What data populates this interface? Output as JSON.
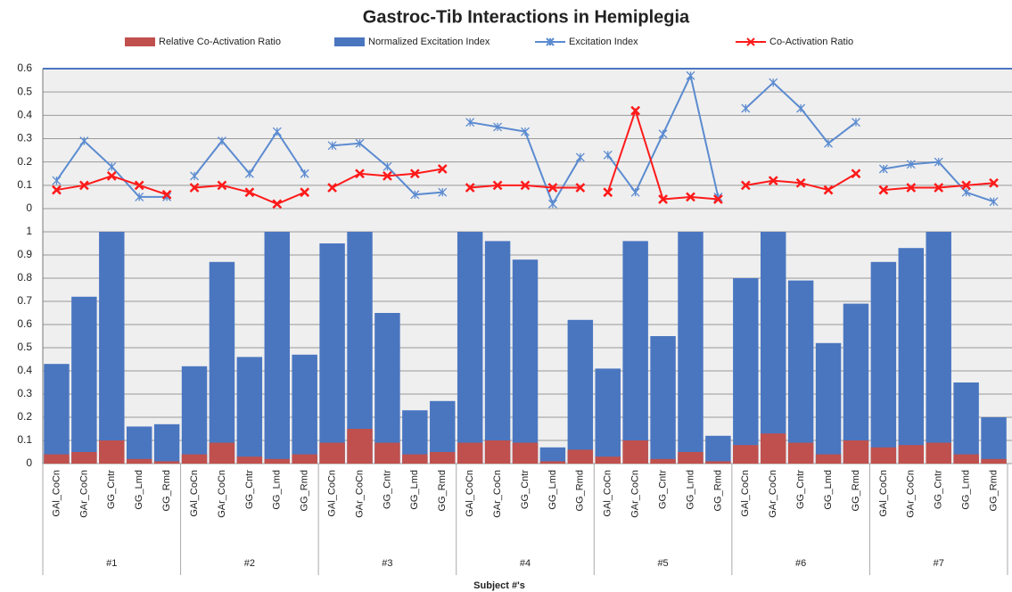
{
  "chart_data": [
    {
      "type": "line",
      "title": "Gastroc-Tib Interactions in Hemiplegia",
      "ylim": [
        0,
        0.6
      ],
      "yticks": [
        0,
        0.1,
        0.2,
        0.3,
        0.4,
        0.5,
        0.6
      ],
      "grid": true,
      "series": [
        {
          "name": "Excitation Index",
          "color": "#5b8bd0",
          "marker": "star",
          "values": [
            0.12,
            0.29,
            0.18,
            0.05,
            0.05,
            0.14,
            0.29,
            0.15,
            0.33,
            0.15,
            0.27,
            0.28,
            0.18,
            0.06,
            0.07,
            0.37,
            0.35,
            0.33,
            0.02,
            0.22,
            0.23,
            0.07,
            0.32,
            0.57,
            0.05,
            0.43,
            0.54,
            0.43,
            0.28,
            0.37,
            0.17,
            0.19,
            0.2,
            0.07,
            0.03
          ]
        },
        {
          "name": "Co-Activation Ratio",
          "color": "#ff1a1a",
          "marker": "x",
          "values": [
            0.08,
            0.1,
            0.14,
            0.1,
            0.06,
            0.09,
            0.1,
            0.07,
            0.02,
            0.07,
            0.09,
            0.15,
            0.14,
            0.15,
            0.17,
            0.09,
            0.1,
            0.1,
            0.09,
            0.09,
            0.07,
            0.42,
            0.04,
            0.05,
            0.04,
            0.1,
            0.12,
            0.11,
            0.08,
            0.15,
            0.08,
            0.09,
            0.09,
            0.1,
            0.11
          ]
        }
      ]
    },
    {
      "type": "bar",
      "xlabel": "Subject #'s",
      "categories": [
        "GAl_CoCn",
        "GAr_CoCn",
        "GG_Cntr",
        "GG_Lmd",
        "GG_Rmd",
        "GAl_CoCn",
        "GAr_CoCn",
        "GG_Cntr",
        "GG_Lmd",
        "GG_Rmd",
        "GAl_CoCn",
        "GAr_CoCn",
        "GG_Cntr",
        "GG_Lmd",
        "GG_Rmd",
        "GAl_CoCn",
        "GAr_CoCn",
        "GG_Cntr",
        "GG_Lmd",
        "GG_Rmd",
        "GAl_CoCn",
        "GAr_CoCn",
        "GG_Cntr",
        "GG_Lmd",
        "GG_Rmd",
        "GAl_CoCn",
        "GAr_CoCn",
        "GG_Cntr",
        "GG_Lmd",
        "GG_Rmd",
        "GAl_CoCn",
        "GAr_CoCn",
        "GG_Cntr",
        "GG_Lmd",
        "GG_Rmd"
      ],
      "groups": [
        "#1",
        "#2",
        "#3",
        "#4",
        "#5",
        "#6",
        "#7"
      ],
      "ylim": [
        0,
        1
      ],
      "yticks": [
        0,
        0.1,
        0.2,
        0.3,
        0.4,
        0.5,
        0.6,
        0.7,
        0.8,
        0.9,
        1
      ],
      "grid": true,
      "series": [
        {
          "name": "Relative Co-Activation Ratio",
          "color": "#c0504d",
          "values": [
            0.04,
            0.05,
            0.1,
            0.02,
            0.01,
            0.04,
            0.09,
            0.03,
            0.02,
            0.04,
            0.09,
            0.15,
            0.09,
            0.04,
            0.05,
            0.09,
            0.1,
            0.09,
            0.01,
            0.06,
            0.03,
            0.1,
            0.02,
            0.05,
            0.01,
            0.08,
            0.13,
            0.09,
            0.04,
            0.1,
            0.07,
            0.08,
            0.09,
            0.04,
            0.02
          ]
        },
        {
          "name": "Normalized Excitation Index",
          "color": "#4a76c0",
          "values": [
            0.43,
            0.72,
            1,
            0.16,
            0.17,
            0.42,
            0.87,
            0.46,
            1,
            0.47,
            0.95,
            1,
            0.65,
            0.23,
            0.27,
            1,
            0.96,
            0.88,
            0.07,
            0.62,
            0.41,
            0.96,
            0.55,
            1,
            0.12,
            0.8,
            1,
            0.79,
            0.52,
            0.69,
            0.87,
            0.93,
            1,
            0.35,
            0.2
          ]
        }
      ]
    }
  ]
}
